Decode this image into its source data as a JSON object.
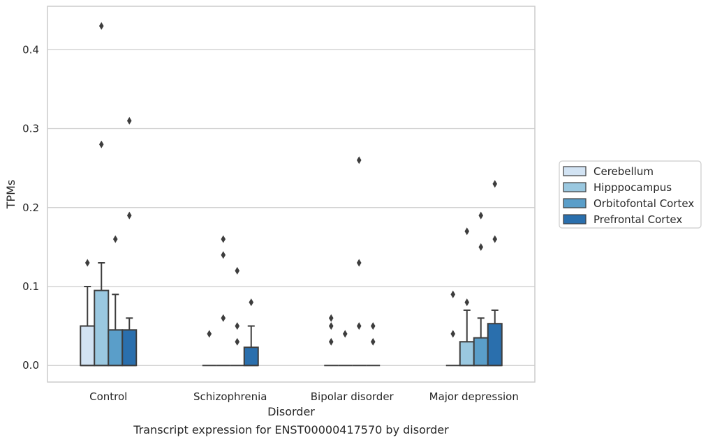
{
  "chart_data": {
    "type": "box",
    "title": "Transcript expression for ENST00000417570 by disorder",
    "xlabel": "Disorder",
    "ylabel": "TPMs",
    "ylim": [
      -0.021,
      0.455
    ],
    "yticks": [
      0.0,
      0.1,
      0.2,
      0.3,
      0.4
    ],
    "ytick_labels": [
      "0.0",
      "0.1",
      "0.2",
      "0.3",
      "0.4"
    ],
    "grid": true,
    "legend_position": "right",
    "categories": [
      "Control",
      "Schizophrenia",
      "Bipolar disorder",
      "Major depression"
    ],
    "series": [
      {
        "name": "Cerebellum",
        "color": "#d2e3f3",
        "boxes": [
          {
            "q1": 0.0,
            "median": 0.0,
            "q3": 0.05,
            "whisker_low": 0.0,
            "whisker_high": 0.1,
            "outliers": [
              0.13
            ]
          },
          {
            "q1": 0.0,
            "median": 0.0,
            "q3": 0.0,
            "whisker_low": 0.0,
            "whisker_high": 0.0,
            "outliers": [
              0.04
            ]
          },
          {
            "q1": 0.0,
            "median": 0.0,
            "q3": 0.0,
            "whisker_low": 0.0,
            "whisker_high": 0.0,
            "outliers": [
              0.03,
              0.05,
              0.06
            ]
          },
          {
            "q1": 0.0,
            "median": 0.0,
            "q3": 0.0,
            "whisker_low": 0.0,
            "whisker_high": 0.0,
            "outliers": [
              0.04,
              0.09
            ]
          }
        ]
      },
      {
        "name": "Hipppocampus",
        "color": "#9ac8e0",
        "boxes": [
          {
            "q1": 0.0,
            "median": 0.0,
            "q3": 0.095,
            "whisker_low": 0.0,
            "whisker_high": 0.13,
            "outliers": [
              0.28,
              0.43
            ]
          },
          {
            "q1": 0.0,
            "median": 0.0,
            "q3": 0.0,
            "whisker_low": 0.0,
            "whisker_high": 0.0,
            "outliers": [
              0.06,
              0.14,
              0.16
            ]
          },
          {
            "q1": 0.0,
            "median": 0.0,
            "q3": 0.0,
            "whisker_low": 0.0,
            "whisker_high": 0.0,
            "outliers": [
              0.04
            ]
          },
          {
            "q1": 0.0,
            "median": 0.0,
            "q3": 0.03,
            "whisker_low": 0.0,
            "whisker_high": 0.07,
            "outliers": [
              0.08,
              0.17
            ]
          }
        ]
      },
      {
        "name": "Orbitofontal Cortex",
        "color": "#5a9ec9",
        "boxes": [
          {
            "q1": 0.0,
            "median": 0.0,
            "q3": 0.045,
            "whisker_low": 0.0,
            "whisker_high": 0.09,
            "outliers": [
              0.16
            ]
          },
          {
            "q1": 0.0,
            "median": 0.0,
            "q3": 0.0,
            "whisker_low": 0.0,
            "whisker_high": 0.0,
            "outliers": [
              0.03,
              0.05,
              0.12
            ]
          },
          {
            "q1": 0.0,
            "median": 0.0,
            "q3": 0.0,
            "whisker_low": 0.0,
            "whisker_high": 0.0,
            "outliers": [
              0.05,
              0.13,
              0.26
            ]
          },
          {
            "q1": 0.0,
            "median": 0.0,
            "q3": 0.035,
            "whisker_low": 0.0,
            "whisker_high": 0.06,
            "outliers": [
              0.15,
              0.19
            ]
          }
        ]
      },
      {
        "name": "Prefrontal Cortex",
        "color": "#2a6fad",
        "boxes": [
          {
            "q1": 0.0,
            "median": 0.0,
            "q3": 0.045,
            "whisker_low": 0.0,
            "whisker_high": 0.06,
            "outliers": [
              0.19,
              0.31
            ]
          },
          {
            "q1": 0.0,
            "median": 0.0,
            "q3": 0.023,
            "whisker_low": 0.0,
            "whisker_high": 0.05,
            "outliers": [
              0.08
            ]
          },
          {
            "q1": 0.0,
            "median": 0.0,
            "q3": 0.0,
            "whisker_low": 0.0,
            "whisker_high": 0.0,
            "outliers": [
              0.03,
              0.05
            ]
          },
          {
            "q1": 0.0,
            "median": 0.0,
            "q3": 0.053,
            "whisker_low": 0.0,
            "whisker_high": 0.07,
            "outliers": [
              0.16,
              0.23
            ]
          }
        ]
      }
    ]
  }
}
